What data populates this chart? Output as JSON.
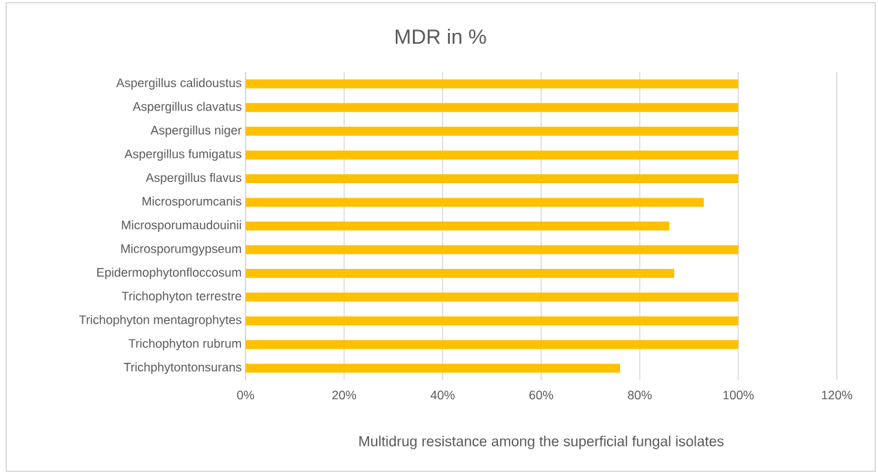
{
  "chart_data": {
    "type": "bar",
    "orientation": "horizontal",
    "title": "MDR in %",
    "xlabel": "Multidrug resistance among the superficial fungal isolates",
    "categories": [
      "Aspergillus calidoustus",
      "Aspergillus clavatus",
      "Aspergillus niger",
      "Aspergillus fumigatus",
      "Aspergillus flavus",
      "Microsporumcanis",
      "Microsporumaudouinii",
      "Microsporumgypseum",
      "Epidermophytonfloccosum",
      "Trichophyton terrestre",
      "Trichophyton mentagrophytes",
      "Trichophyton rubrum",
      "Trichphytontonsurans"
    ],
    "values": [
      100,
      100,
      100,
      100,
      100,
      93,
      86,
      100,
      87,
      100,
      100,
      100,
      76
    ],
    "color": "#ffc000",
    "xlim": [
      0,
      120
    ],
    "xticks": [
      {
        "value": 0,
        "label": "0%"
      },
      {
        "value": 20,
        "label": "20%"
      },
      {
        "value": 40,
        "label": "40%"
      },
      {
        "value": 60,
        "label": "60%"
      },
      {
        "value": 80,
        "label": "80%"
      },
      {
        "value": 100,
        "label": "100%"
      },
      {
        "value": 120,
        "label": "120%"
      }
    ],
    "grid": "x"
  }
}
